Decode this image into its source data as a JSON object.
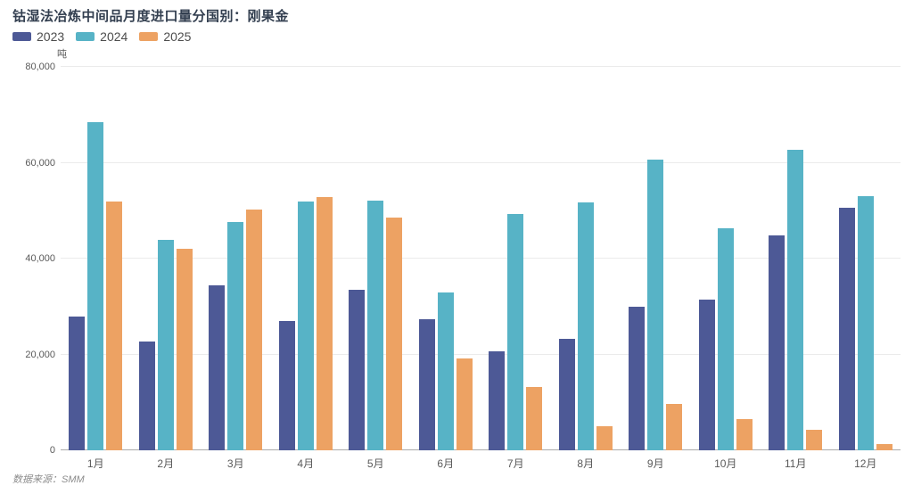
{
  "chart_data": {
    "type": "bar",
    "title": "钴湿法冶炼中间品月度进口量分国别：刚果金",
    "unit": "吨",
    "categories": [
      "1月",
      "2月",
      "3月",
      "4月",
      "5月",
      "6月",
      "7月",
      "8月",
      "9月",
      "10月",
      "11月",
      "12月"
    ],
    "series": [
      {
        "name": "2023",
        "color": "#4d5996",
        "values": [
          28000,
          22700,
          34500,
          27000,
          33500,
          27300,
          20600,
          23200,
          30000,
          31500,
          44800,
          50700
        ]
      },
      {
        "name": "2024",
        "color": "#57b3c6",
        "values": [
          68500,
          44000,
          47700,
          52000,
          52100,
          32900,
          49300,
          51700,
          60700,
          46300,
          62700,
          53100
        ]
      },
      {
        "name": "2025",
        "color": "#eda263",
        "values": [
          52000,
          42000,
          50300,
          52800,
          48500,
          19200,
          13200,
          5000,
          9600,
          6500,
          4200,
          1300
        ]
      }
    ],
    "ylim": [
      0,
      80000
    ],
    "yticks": [
      0,
      20000,
      40000,
      60000,
      80000
    ],
    "ytick_labels": [
      "0",
      "20,000",
      "40,000",
      "60,000",
      "80,000"
    ],
    "grid": true,
    "legend_position": "top-left",
    "source": "数据来源：SMM"
  }
}
